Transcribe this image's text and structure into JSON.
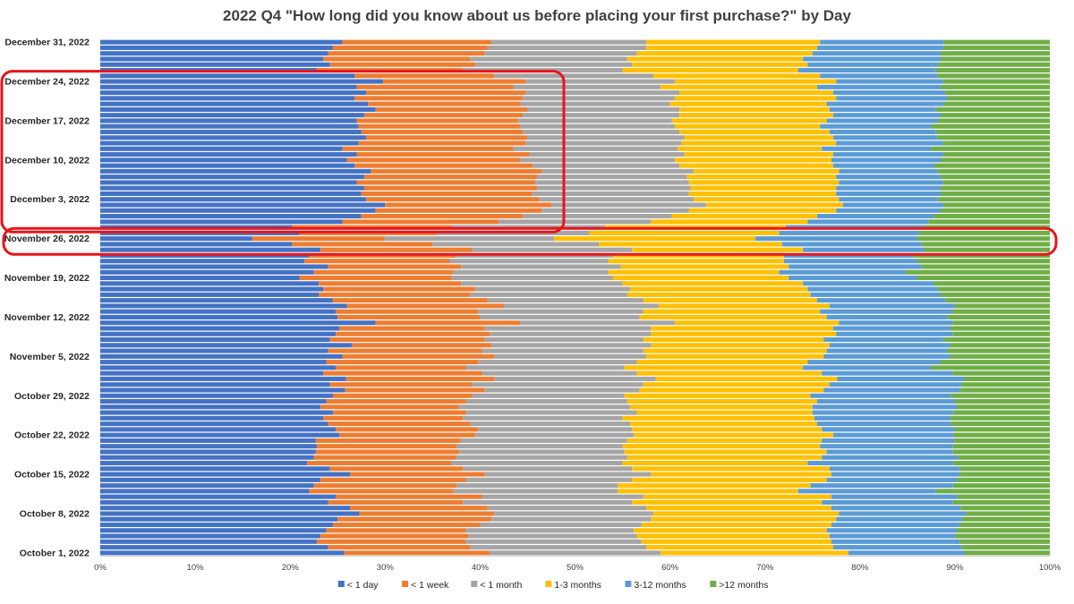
{
  "chart_data": {
    "type": "bar",
    "orientation": "horizontal",
    "stacked": "percent",
    "title": "2022 Q4 \"How long did you know about us before placing your first purchase?\" by Day",
    "xlim": [
      0,
      100
    ],
    "x_ticks": [
      "0%",
      "10%",
      "20%",
      "30%",
      "40%",
      "50%",
      "60%",
      "70%",
      "80%",
      "90%",
      "100%"
    ],
    "y_tick_labels": [
      "December 31, 2022",
      "December 24, 2022",
      "December 17, 2022",
      "December 10, 2022",
      "December 3, 2022",
      "November 26, 2022",
      "November 19, 2022",
      "November 12, 2022",
      "November 5, 2022",
      "October 29, 2022",
      "October 22, 2022",
      "October 15, 2022",
      "October 8, 2022",
      "October 1, 2022"
    ],
    "legend_position": "bottom",
    "grid": false,
    "highlight_boxes": [
      {
        "from": "2022-11-28",
        "to": "2022-12-25",
        "color": "#e8141c"
      },
      {
        "from": "2022-11-24",
        "to": "2022-11-27",
        "color": "#e8141c"
      }
    ],
    "series": [
      {
        "name": "< 1 day",
        "color": "#4472c4"
      },
      {
        "name": "< 1 week",
        "color": "#ed7d31"
      },
      {
        "name": "< 1 month",
        "color": "#a5a5a5"
      },
      {
        "name": "1-3 months",
        "color": "#ffc000"
      },
      {
        "name": "3-12 months",
        "color": "#5b9bd5"
      },
      {
        "name": ">12 months",
        "color": "#70ad47"
      }
    ],
    "rows": [
      {
        "date": "2022-10-01",
        "cum": [
          25.7,
          41.0,
          59.0,
          78.8,
          91.0
        ]
      },
      {
        "date": "2022-10-02",
        "cum": [
          24.0,
          39.0,
          57.5,
          77.2,
          90.7
        ]
      },
      {
        "date": "2022-10-03",
        "cum": [
          22.8,
          38.5,
          57.0,
          77.0,
          90.5
        ]
      },
      {
        "date": "2022-10-04",
        "cum": [
          23.2,
          38.8,
          56.5,
          76.8,
          90.0
        ]
      },
      {
        "date": "2022-10-05",
        "cum": [
          23.8,
          38.5,
          56.2,
          76.5,
          90.2
        ]
      },
      {
        "date": "2022-10-06",
        "cum": [
          24.5,
          40.0,
          57.0,
          77.0,
          90.5
        ]
      },
      {
        "date": "2022-10-07",
        "cum": [
          25.0,
          41.2,
          58.0,
          77.5,
          90.8
        ]
      },
      {
        "date": "2022-10-08",
        "cum": [
          27.3,
          41.5,
          58.2,
          77.8,
          91.2
        ]
      },
      {
        "date": "2022-10-09",
        "cum": [
          26.3,
          40.8,
          57.5,
          77.0,
          90.6
        ]
      },
      {
        "date": "2022-10-10",
        "cum": [
          24.0,
          38.2,
          56.0,
          76.0,
          89.8
        ]
      },
      {
        "date": "2022-10-11",
        "cum": [
          24.8,
          40.2,
          57.2,
          77.0,
          90.3
        ]
      },
      {
        "date": "2022-10-12",
        "cum": [
          22.0,
          37.2,
          54.5,
          73.5,
          88.0
        ]
      },
      {
        "date": "2022-10-13",
        "cum": [
          22.5,
          37.5,
          54.5,
          74.8,
          89.8
        ]
      },
      {
        "date": "2022-10-14",
        "cum": [
          23.2,
          38.5,
          56.0,
          76.5,
          90.2
        ]
      },
      {
        "date": "2022-10-15",
        "cum": [
          26.3,
          40.5,
          58.0,
          77.0,
          90.5
        ]
      },
      {
        "date": "2022-10-16",
        "cum": [
          24.2,
          38.2,
          56.0,
          76.8,
          90.5
        ]
      },
      {
        "date": "2022-10-17",
        "cum": [
          21.8,
          37.0,
          55.0,
          74.5,
          89.8
        ]
      },
      {
        "date": "2022-10-18",
        "cum": [
          22.5,
          37.5,
          55.5,
          76.0,
          90.3
        ]
      },
      {
        "date": "2022-10-19",
        "cum": [
          22.7,
          37.8,
          55.2,
          76.5,
          89.8
        ]
      },
      {
        "date": "2022-10-20",
        "cum": [
          22.8,
          37.5,
          55.0,
          75.8,
          89.8
        ]
      },
      {
        "date": "2022-10-21",
        "cum": [
          22.7,
          38.0,
          55.5,
          76.0,
          90.0
        ]
      },
      {
        "date": "2022-10-22",
        "cum": [
          25.2,
          39.5,
          56.2,
          77.2,
          89.8
        ]
      },
      {
        "date": "2022-10-23",
        "cum": [
          24.8,
          39.8,
          56.0,
          76.0,
          90.0
        ]
      },
      {
        "date": "2022-10-24",
        "cum": [
          24.0,
          39.0,
          55.8,
          75.5,
          89.6
        ]
      },
      {
        "date": "2022-10-25",
        "cum": [
          23.5,
          38.2,
          55.0,
          75.2,
          89.5
        ]
      },
      {
        "date": "2022-10-26",
        "cum": [
          24.5,
          38.5,
          56.5,
          75.0,
          89.8
        ]
      },
      {
        "date": "2022-10-27",
        "cum": [
          23.2,
          37.8,
          55.8,
          75.0,
          90.2
        ]
      },
      {
        "date": "2022-10-28",
        "cum": [
          23.8,
          38.5,
          55.5,
          75.5,
          90.0
        ]
      },
      {
        "date": "2022-10-29",
        "cum": [
          24.5,
          39.2,
          55.2,
          74.8,
          89.6
        ]
      },
      {
        "date": "2022-10-30",
        "cum": [
          25.8,
          40.5,
          56.8,
          76.2,
          90.5
        ]
      },
      {
        "date": "2022-10-31",
        "cum": [
          24.2,
          39.2,
          57.2,
          76.8,
          90.7
        ]
      },
      {
        "date": "2022-11-01",
        "cum": [
          25.9,
          41.5,
          58.5,
          77.6,
          91.0
        ]
      },
      {
        "date": "2022-11-02",
        "cum": [
          23.5,
          40.2,
          56.5,
          76.0,
          89.8
        ]
      },
      {
        "date": "2022-11-03",
        "cum": [
          24.8,
          38.5,
          55.2,
          74.0,
          87.5
        ]
      },
      {
        "date": "2022-11-04",
        "cum": [
          23.8,
          39.8,
          56.5,
          74.5,
          88.5
        ]
      },
      {
        "date": "2022-11-05",
        "cum": [
          25.5,
          41.5,
          57.5,
          76.2,
          89.5
        ]
      },
      {
        "date": "2022-11-06",
        "cum": [
          24.0,
          40.2,
          57.2,
          76.5,
          89.2
        ]
      },
      {
        "date": "2022-11-07",
        "cum": [
          26.5,
          41.2,
          58.0,
          76.8,
          89.5
        ]
      },
      {
        "date": "2022-11-08",
        "cum": [
          24.2,
          40.5,
          57.2,
          76.2,
          88.8
        ]
      },
      {
        "date": "2022-11-09",
        "cum": [
          24.8,
          41.0,
          58.0,
          77.5,
          89.8
        ]
      },
      {
        "date": "2022-11-10",
        "cum": [
          25.2,
          40.5,
          58.0,
          77.2,
          89.5
        ]
      },
      {
        "date": "2022-11-11",
        "cum": [
          29.0,
          44.2,
          60.5,
          77.8,
          89.8
        ]
      },
      {
        "date": "2022-11-12",
        "cum": [
          25.0,
          40.0,
          56.8,
          76.5,
          89.2
        ]
      },
      {
        "date": "2022-11-13",
        "cum": [
          24.8,
          39.8,
          57.2,
          75.8,
          89.7
        ]
      },
      {
        "date": "2022-11-14",
        "cum": [
          26.0,
          42.5,
          58.8,
          76.8,
          90.0
        ]
      },
      {
        "date": "2022-11-15",
        "cum": [
          24.5,
          40.8,
          57.2,
          75.5,
          89.0
        ]
      },
      {
        "date": "2022-11-16",
        "cum": [
          23.0,
          39.0,
          55.5,
          74.8,
          88.5
        ]
      },
      {
        "date": "2022-11-17",
        "cum": [
          23.5,
          39.5,
          55.8,
          74.5,
          88.2
        ]
      },
      {
        "date": "2022-11-18",
        "cum": [
          23.0,
          38.0,
          55.0,
          74.0,
          87.8
        ]
      },
      {
        "date": "2022-11-19",
        "cum": [
          21.0,
          37.0,
          54.0,
          72.5,
          86.0
        ]
      },
      {
        "date": "2022-11-20",
        "cum": [
          22.5,
          37.2,
          53.5,
          71.5,
          84.8
        ]
      },
      {
        "date": "2022-11-21",
        "cum": [
          24.0,
          38.0,
          54.8,
          72.5,
          86.5
        ]
      },
      {
        "date": "2022-11-22",
        "cum": [
          21.5,
          36.8,
          53.5,
          72.0,
          86.0
        ]
      },
      {
        "date": "2022-11-23",
        "cum": [
          22.0,
          37.5,
          54.0,
          72.0,
          85.5
        ]
      },
      {
        "date": "2022-11-24",
        "cum": [
          23.2,
          39.2,
          56.0,
          74.0,
          86.8
        ]
      },
      {
        "date": "2022-11-25",
        "cum": [
          20.2,
          35.0,
          52.5,
          71.8,
          86.5
        ]
      },
      {
        "date": "2022-11-26",
        "cum": [
          16.0,
          30.0,
          47.8,
          69.0,
          86.0
        ]
      },
      {
        "date": "2022-11-27",
        "cum": [
          21.0,
          35.5,
          51.5,
          71.5,
          86.2
        ]
      },
      {
        "date": "2022-11-28",
        "cum": [
          20.2,
          37.0,
          53.2,
          72.2,
          86.8
        ]
      },
      {
        "date": "2022-11-29",
        "cum": [
          25.5,
          42.0,
          58.0,
          74.5,
          87.2
        ]
      },
      {
        "date": "2022-11-30",
        "cum": [
          27.5,
          44.5,
          60.2,
          75.5,
          87.8
        ]
      },
      {
        "date": "2022-12-01",
        "cum": [
          29.0,
          46.5,
          62.0,
          77.5,
          88.5
        ]
      },
      {
        "date": "2022-12-02",
        "cum": [
          30.0,
          47.5,
          63.8,
          78.2,
          88.8
        ]
      },
      {
        "date": "2022-12-03",
        "cum": [
          28.0,
          46.2,
          62.5,
          77.8,
          88.2
        ]
      },
      {
        "date": "2022-12-04",
        "cum": [
          27.5,
          45.5,
          62.0,
          77.5,
          88.5
        ]
      },
      {
        "date": "2022-12-05",
        "cum": [
          27.8,
          46.0,
          62.2,
          77.5,
          88.5
        ]
      },
      {
        "date": "2022-12-06",
        "cum": [
          27.0,
          45.8,
          62.0,
          77.8,
          88.8
        ]
      },
      {
        "date": "2022-12-07",
        "cum": [
          27.8,
          46.0,
          61.8,
          77.5,
          88.5
        ]
      },
      {
        "date": "2022-12-08",
        "cum": [
          28.5,
          46.5,
          62.5,
          77.8,
          88.2
        ]
      },
      {
        "date": "2022-12-09",
        "cum": [
          26.8,
          45.5,
          61.0,
          77.2,
          87.8
        ]
      },
      {
        "date": "2022-12-10",
        "cum": [
          26.0,
          44.2,
          60.5,
          77.0,
          88.5
        ]
      },
      {
        "date": "2022-12-11",
        "cum": [
          27.0,
          45.2,
          61.5,
          77.2,
          88.8
        ]
      },
      {
        "date": "2022-12-12",
        "cum": [
          25.5,
          43.5,
          60.8,
          76.0,
          87.5
        ]
      },
      {
        "date": "2022-12-13",
        "cum": [
          27.2,
          44.8,
          61.2,
          77.5,
          88.8
        ]
      },
      {
        "date": "2022-12-14",
        "cum": [
          28.0,
          45.0,
          61.5,
          77.2,
          88.2
        ]
      },
      {
        "date": "2022-12-15",
        "cum": [
          27.5,
          44.5,
          61.0,
          76.8,
          88.0
        ]
      },
      {
        "date": "2022-12-16",
        "cum": [
          27.2,
          44.2,
          60.5,
          75.8,
          87.5
        ]
      },
      {
        "date": "2022-12-17",
        "cum": [
          27.0,
          44.0,
          60.2,
          76.5,
          88.2
        ]
      },
      {
        "date": "2022-12-18",
        "cum": [
          27.8,
          44.5,
          61.0,
          77.2,
          88.5
        ]
      },
      {
        "date": "2022-12-19",
        "cum": [
          29.0,
          45.0,
          61.0,
          76.8,
          88.0
        ]
      },
      {
        "date": "2022-12-20",
        "cum": [
          28.2,
          44.2,
          60.0,
          76.5,
          88.8
        ]
      },
      {
        "date": "2022-12-21",
        "cum": [
          26.8,
          44.5,
          60.5,
          77.5,
          89.2
        ]
      },
      {
        "date": "2022-12-22",
        "cum": [
          28.0,
          44.8,
          61.0,
          77.2,
          89.0
        ]
      },
      {
        "date": "2022-12-23",
        "cum": [
          27.0,
          43.5,
          59.0,
          75.5,
          88.5
        ]
      },
      {
        "date": "2022-12-24",
        "cum": [
          29.8,
          44.8,
          60.5,
          77.5,
          88.8
        ]
      },
      {
        "date": "2022-12-25",
        "cum": [
          26.8,
          41.5,
          58.2,
          75.8,
          88.2
        ]
      },
      {
        "date": "2022-12-26",
        "cum": [
          22.8,
          38.2,
          55.0,
          73.5,
          88.0
        ]
      },
      {
        "date": "2022-12-27",
        "cum": [
          24.2,
          39.5,
          56.0,
          74.5,
          88.2
        ]
      },
      {
        "date": "2022-12-28",
        "cum": [
          23.5,
          39.0,
          55.5,
          74.0,
          88.5
        ]
      },
      {
        "date": "2022-12-29",
        "cum": [
          24.0,
          40.5,
          56.5,
          75.0,
          88.5
        ]
      },
      {
        "date": "2022-12-30",
        "cum": [
          24.5,
          40.8,
          57.5,
          75.5,
          88.8
        ]
      },
      {
        "date": "2022-12-31",
        "cum": [
          25.5,
          41.2,
          57.5,
          75.8,
          88.8
        ]
      }
    ]
  }
}
